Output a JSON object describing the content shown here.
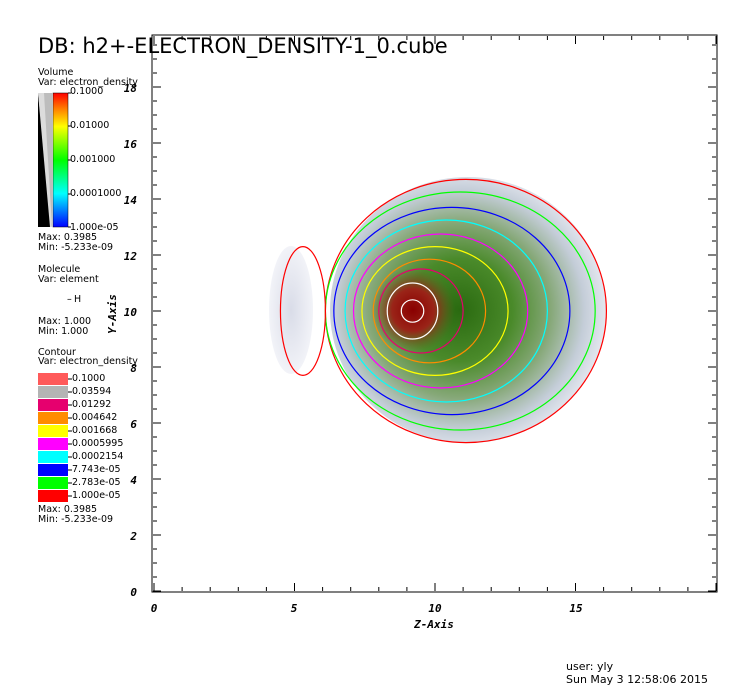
{
  "title": "DB: h2+-ELECTRON_DENSITY-1_0.cube",
  "volume_legend": {
    "heading": "Volume",
    "var": "Var: electron_density",
    "labels": [
      "0.1000",
      "0.01000",
      "0.001000",
      "0.0001000",
      "1.000e-05"
    ],
    "max": "Max:  0.3985",
    "min": "Min: -5.233e-09"
  },
  "molecule_legend": {
    "heading": "Molecule",
    "var": "Var: element",
    "entry": "H",
    "max": "Max:  1.000",
    "min": "Min:  1.000"
  },
  "contour_legend": {
    "heading": "Contour",
    "var": "Var: electron_density",
    "levels": [
      {
        "label": "0.1000",
        "color": "#ff5a5a"
      },
      {
        "label": "0.03594",
        "color": "#b4b4b4"
      },
      {
        "label": "0.01292",
        "color": "#e6006e"
      },
      {
        "label": "0.004642",
        "color": "#ff8c00"
      },
      {
        "label": "0.001668",
        "color": "#ffff00"
      },
      {
        "label": "0.0005995",
        "color": "#ff00ff"
      },
      {
        "label": "0.0002154",
        "color": "#00ffff"
      },
      {
        "label": "7.743e-05",
        "color": "#0000ff"
      },
      {
        "label": "2.783e-05",
        "color": "#00ff00"
      },
      {
        "label": "1.000e-05",
        "color": "#ff0000"
      }
    ],
    "max": "Max:  0.3985",
    "min": "Min: -5.233e-09"
  },
  "axes": {
    "xlabel": "Z-Axis",
    "ylabel": "Y-Axis",
    "xticks": [
      "0",
      "5",
      "10",
      "15"
    ],
    "yticks": [
      "0",
      "2",
      "4",
      "6",
      "8",
      "10",
      "12",
      "14",
      "16",
      "18"
    ]
  },
  "user_info": {
    "user": "user: yly",
    "date": "Sun May  3 12:58:06 2015"
  },
  "chart_data": {
    "type": "heatmap",
    "title": "DB: h2+-ELECTRON_DENSITY-1_0.cube",
    "xlabel": "Z-Axis",
    "ylabel": "Y-Axis",
    "xlim": [
      0,
      20
    ],
    "ylim": [
      0,
      19.8
    ],
    "variable": "electron_density",
    "data_max": 0.3985,
    "data_min": -5.233e-09,
    "peak_center": {
      "z": 9.2,
      "y": 10.0
    },
    "contour_levels": [
      0.1,
      0.03594,
      0.01292,
      0.004642,
      0.001668,
      0.0005995,
      0.0002154,
      7.743e-05,
      2.783e-05,
      1e-05
    ],
    "contours": [
      {
        "level": 0.1,
        "cz": 9.2,
        "cy": 10.0,
        "rz": 0.4,
        "ry": 0.4
      },
      {
        "level": 0.03594,
        "cz": 9.2,
        "cy": 10.0,
        "rz": 0.9,
        "ry": 1.0
      },
      {
        "level": 0.01292,
        "cz": 9.5,
        "cy": 10.0,
        "rz": 1.5,
        "ry": 1.5
      },
      {
        "level": 0.004642,
        "cz": 9.8,
        "cy": 10.0,
        "rz": 2.0,
        "ry": 1.85
      },
      {
        "level": 0.001668,
        "cz": 10.0,
        "cy": 10.0,
        "rz": 2.6,
        "ry": 2.3
      },
      {
        "level": 0.0005995,
        "cz": 10.2,
        "cy": 10.0,
        "rz": 3.1,
        "ry": 2.75
      },
      {
        "level": 0.0002154,
        "cz": 10.4,
        "cy": 10.0,
        "rz": 3.6,
        "ry": 3.25
      },
      {
        "level": 7.743e-05,
        "cz": 10.6,
        "cy": 10.0,
        "rz": 4.2,
        "ry": 3.7
      },
      {
        "level": 2.783e-05,
        "cz": 10.9,
        "cy": 10.0,
        "rz": 4.8,
        "ry": 4.25
      },
      {
        "level": 1e-05,
        "cz": 11.1,
        "cy": 10.0,
        "rz": 5.0,
        "ry": 4.7
      }
    ],
    "side_lobe": {
      "level": 1e-05,
      "cz": 5.3,
      "cy": 10.0,
      "rz": 0.8,
      "ry": 2.3
    }
  }
}
